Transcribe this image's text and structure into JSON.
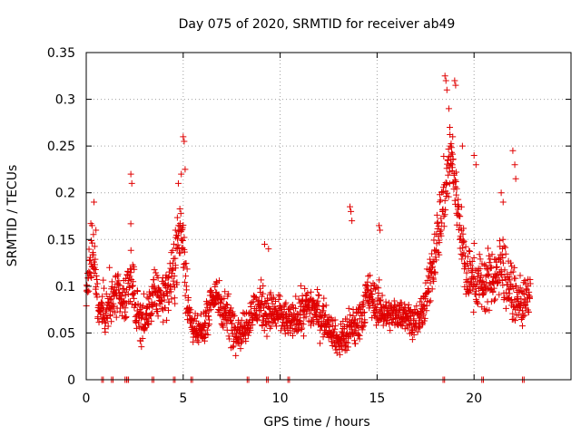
{
  "chart_data": {
    "type": "scatter",
    "title": "Day 075 of 2020, SRMTID for receiver ab49",
    "xlabel": "GPS time / hours",
    "ylabel": "SRMTID / TECUs",
    "xlim": [
      0,
      25
    ],
    "ylim": [
      0,
      0.35
    ],
    "x_ticks": [
      0,
      5,
      10,
      15,
      20
    ],
    "x_tick_labels": [
      "0",
      "5",
      "10",
      "15",
      "20"
    ],
    "y_ticks": [
      0,
      0.05,
      0.1,
      0.15,
      0.2,
      0.25,
      0.3,
      0.35
    ],
    "y_tick_labels": [
      "0",
      "0.05",
      "0.1",
      "0.15",
      "0.2",
      "0.25",
      "0.3",
      "0.35"
    ],
    "grid": true,
    "marker": "+",
    "color": "#e00000",
    "series": [
      {
        "name": "SRMTID",
        "profile": [
          [
            0.0,
            0.09,
            0.03
          ],
          [
            0.2,
            0.13,
            0.03
          ],
          [
            0.4,
            0.14,
            0.04
          ],
          [
            0.6,
            0.08,
            0.03
          ],
          [
            1.0,
            0.07,
            0.03
          ],
          [
            1.5,
            0.09,
            0.03
          ],
          [
            2.0,
            0.08,
            0.03
          ],
          [
            2.3,
            0.12,
            0.05
          ],
          [
            2.6,
            0.07,
            0.03
          ],
          [
            3.0,
            0.06,
            0.03
          ],
          [
            3.5,
            0.09,
            0.03
          ],
          [
            4.0,
            0.09,
            0.03
          ],
          [
            4.5,
            0.11,
            0.04
          ],
          [
            4.8,
            0.16,
            0.05
          ],
          [
            5.0,
            0.15,
            0.06
          ],
          [
            5.3,
            0.07,
            0.03
          ],
          [
            5.6,
            0.05,
            0.02
          ],
          [
            6.0,
            0.05,
            0.02
          ],
          [
            6.5,
            0.09,
            0.03
          ],
          [
            7.0,
            0.08,
            0.03
          ],
          [
            7.5,
            0.06,
            0.03
          ],
          [
            8.0,
            0.05,
            0.02
          ],
          [
            8.5,
            0.07,
            0.03
          ],
          [
            9.0,
            0.08,
            0.03
          ],
          [
            9.5,
            0.07,
            0.03
          ],
          [
            10.0,
            0.07,
            0.03
          ],
          [
            10.5,
            0.06,
            0.02
          ],
          [
            11.0,
            0.07,
            0.03
          ],
          [
            11.5,
            0.08,
            0.03
          ],
          [
            12.0,
            0.07,
            0.03
          ],
          [
            12.5,
            0.06,
            0.02
          ],
          [
            13.0,
            0.04,
            0.02
          ],
          [
            13.5,
            0.05,
            0.03
          ],
          [
            14.0,
            0.06,
            0.03
          ],
          [
            14.5,
            0.09,
            0.03
          ],
          [
            15.0,
            0.08,
            0.03
          ],
          [
            15.5,
            0.07,
            0.02
          ],
          [
            16.0,
            0.07,
            0.02
          ],
          [
            16.5,
            0.07,
            0.02
          ],
          [
            17.0,
            0.06,
            0.02
          ],
          [
            17.5,
            0.08,
            0.03
          ],
          [
            18.0,
            0.14,
            0.04
          ],
          [
            18.5,
            0.2,
            0.05
          ],
          [
            18.8,
            0.24,
            0.05
          ],
          [
            19.2,
            0.18,
            0.04
          ],
          [
            19.6,
            0.11,
            0.04
          ],
          [
            20.0,
            0.11,
            0.04
          ],
          [
            20.5,
            0.1,
            0.04
          ],
          [
            21.0,
            0.11,
            0.04
          ],
          [
            21.5,
            0.12,
            0.05
          ],
          [
            22.0,
            0.09,
            0.03
          ],
          [
            22.5,
            0.08,
            0.03
          ],
          [
            22.9,
            0.09,
            0.03
          ]
        ],
        "extra_points": [
          [
            2.3,
            0.22
          ],
          [
            2.35,
            0.21
          ],
          [
            4.75,
            0.21
          ],
          [
            4.9,
            0.22
          ],
          [
            5.0,
            0.26
          ],
          [
            5.05,
            0.255
          ],
          [
            5.1,
            0.225
          ],
          [
            18.5,
            0.325
          ],
          [
            18.55,
            0.32
          ],
          [
            18.6,
            0.31
          ],
          [
            18.7,
            0.29
          ],
          [
            18.75,
            0.27
          ],
          [
            19.0,
            0.32
          ],
          [
            19.05,
            0.315
          ],
          [
            18.9,
            0.26
          ],
          [
            19.4,
            0.25
          ],
          [
            20.0,
            0.24
          ],
          [
            20.1,
            0.23
          ],
          [
            21.4,
            0.2
          ],
          [
            21.5,
            0.19
          ],
          [
            22.0,
            0.245
          ],
          [
            22.1,
            0.23
          ],
          [
            22.15,
            0.215
          ],
          [
            13.6,
            0.185
          ],
          [
            13.65,
            0.18
          ],
          [
            13.7,
            0.17
          ],
          [
            15.1,
            0.165
          ],
          [
            15.15,
            0.16
          ],
          [
            9.2,
            0.145
          ],
          [
            9.4,
            0.14
          ],
          [
            0.3,
            0.165
          ],
          [
            0.4,
            0.19
          ],
          [
            0.5,
            0.16
          ],
          [
            1.2,
            0.12
          ],
          [
            4.6,
            0.16
          ]
        ],
        "zero_points": [
          0.8,
          1.3,
          2.0,
          2.1,
          3.4,
          4.5,
          5.4,
          8.3,
          9.3,
          10.4,
          18.4,
          20.4,
          22.5
        ]
      }
    ]
  }
}
